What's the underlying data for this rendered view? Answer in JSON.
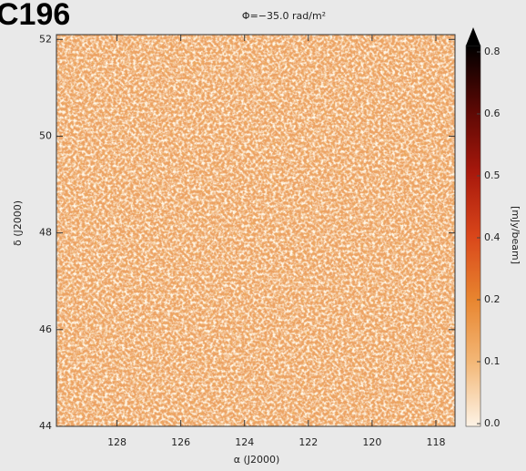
{
  "chart_data": {
    "type": "image",
    "title": "C196",
    "subtitle": "Φ=−35.0 rad/m²",
    "x_label": "α (J2000)",
    "y_label": "δ (J2000)",
    "xlim": [
      129.9,
      117.4
    ],
    "ylim": [
      44,
      52.1
    ],
    "xticks": [
      128,
      126,
      124,
      122,
      120,
      118
    ],
    "yticks": [
      44,
      46,
      48,
      50,
      52
    ],
    "colorbar": {
      "label": "[mJy/beam]",
      "ticks": [
        {
          "value": 0,
          "label": "0.0"
        },
        0.1,
        0.2,
        0.4,
        0.5,
        0.6,
        0.8
      ],
      "colormap": [
        "#fdf3e6",
        "#f3b878",
        "#e8852f",
        "#d9461a",
        "#a8180c",
        "#5a0804",
        "#000000"
      ]
    }
  }
}
